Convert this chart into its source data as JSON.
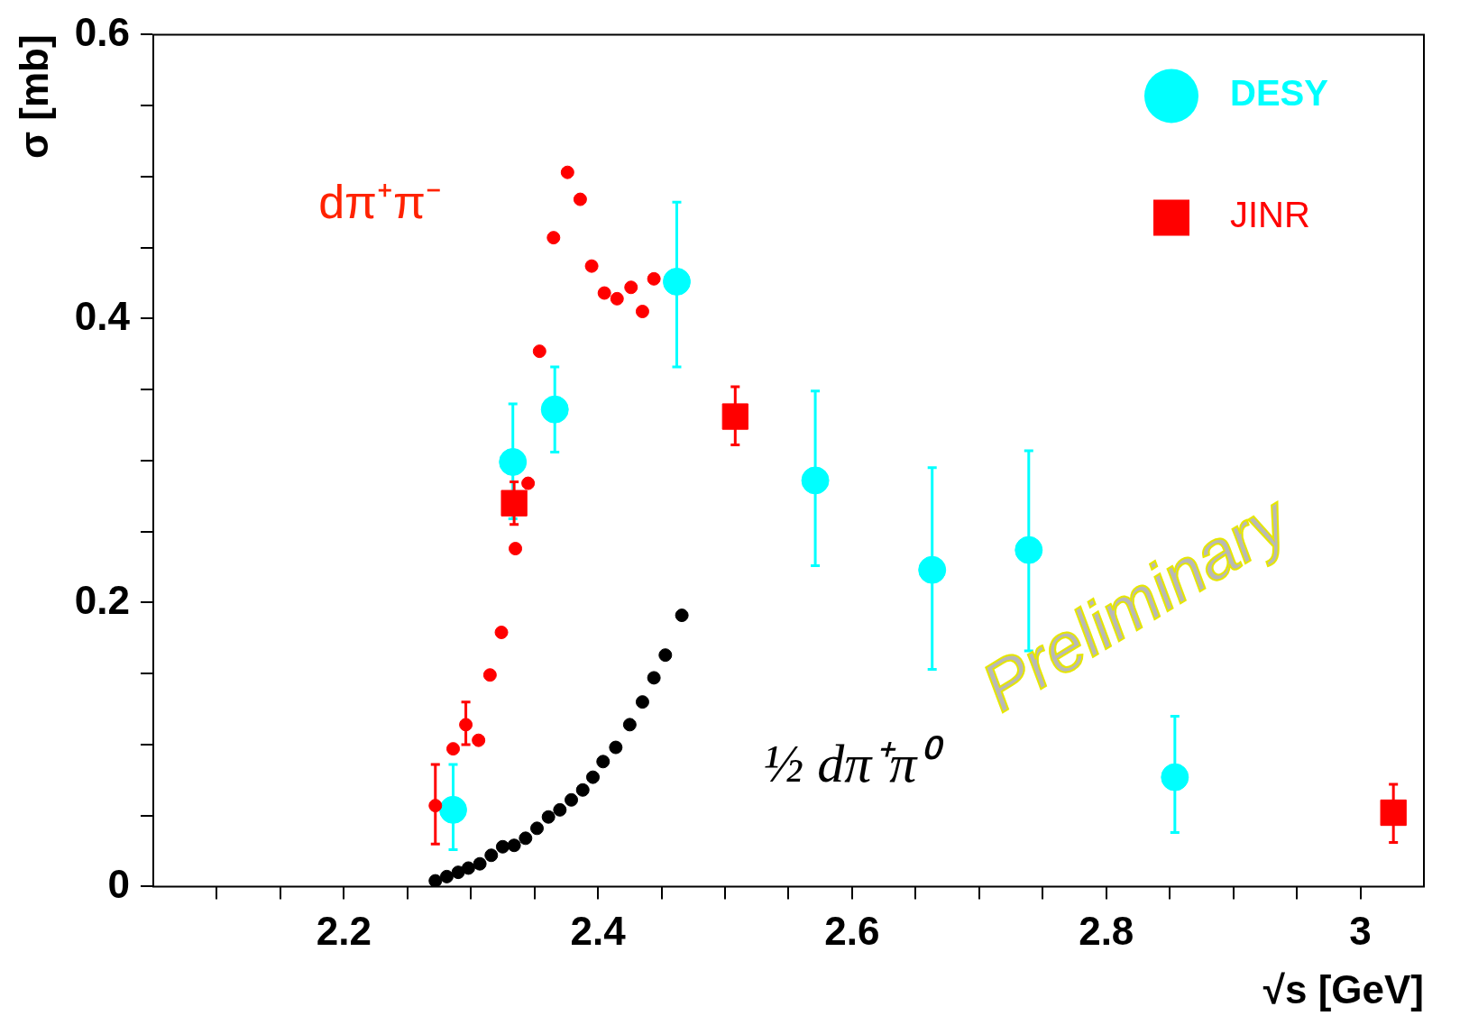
{
  "chart_data": {
    "type": "scatter",
    "xlabel": "√s [GeV]",
    "ylabel": "σ [mb]",
    "xlim": [
      2.05,
      3.05
    ],
    "ylim": [
      0,
      0.6
    ],
    "xticks": [
      {
        "value": 2.1,
        "label": null
      },
      {
        "value": 2.15,
        "label": null
      },
      2.2,
      {
        "value": 2.25,
        "label": null
      },
      {
        "value": 2.3,
        "label": null
      },
      {
        "value": 2.35,
        "label": null
      },
      2.4,
      {
        "value": 2.45,
        "label": null
      },
      {
        "value": 2.5,
        "label": null
      },
      {
        "value": 2.55,
        "label": null
      },
      2.6,
      {
        "value": 2.65,
        "label": null
      },
      {
        "value": 2.7,
        "label": null
      },
      {
        "value": 2.75,
        "label": null
      },
      2.8,
      {
        "value": 2.85,
        "label": null
      },
      {
        "value": 2.9,
        "label": null
      },
      {
        "value": 2.95,
        "label": null
      },
      3
    ],
    "yticks": [
      0,
      {
        "value": 0.05,
        "label": null
      },
      {
        "value": 0.1,
        "label": null
      },
      {
        "value": 0.15,
        "label": null
      },
      0.2,
      {
        "value": 0.25,
        "label": null
      },
      {
        "value": 0.3,
        "label": null
      },
      {
        "value": 0.35,
        "label": null
      },
      0.4,
      {
        "value": 0.45,
        "label": null
      },
      {
        "value": 0.5,
        "label": null
      },
      {
        "value": 0.55,
        "label": null
      },
      0.6
    ],
    "grid": false,
    "legend": "top right",
    "series": [
      {
        "color": "#ff0000",
        "marker": "circle",
        "x": [
          2.272,
          2.286,
          2.296,
          2.306,
          2.315,
          2.324,
          2.335,
          2.345,
          2.354,
          2.365,
          2.376,
          2.386,
          2.395,
          2.405,
          2.415,
          2.426,
          2.435,
          2.444
        ],
        "values": [
          0.057,
          0.097,
          0.114,
          0.103,
          0.149,
          0.179,
          0.238,
          0.284,
          0.377,
          0.457,
          0.503,
          0.484,
          0.437,
          0.418,
          0.414,
          0.422,
          0.405,
          0.428
        ],
        "errors": [
          [
            0.03,
            0.086
          ],
          null,
          [
            0.1,
            0.13
          ],
          null,
          null,
          null,
          null,
          null,
          null,
          null,
          null,
          null,
          null,
          null,
          null,
          null,
          null,
          null
        ]
      },
      {
        "color": "#000000",
        "marker": "circle",
        "x": [
          2.272,
          2.281,
          2.29,
          2.298,
          2.307,
          2.316,
          2.325,
          2.334,
          2.343,
          2.352,
          2.361,
          2.37,
          2.379,
          2.388,
          2.396,
          2.404,
          2.414,
          2.425,
          2.435,
          2.444,
          2.453,
          2.466
        ],
        "values": [
          0.004,
          0.007,
          0.01,
          0.013,
          0.016,
          0.022,
          0.028,
          0.029,
          0.034,
          0.041,
          0.049,
          0.054,
          0.061,
          0.068,
          0.077,
          0.088,
          0.098,
          0.114,
          0.13,
          0.147,
          0.163,
          0.191
        ]
      },
      {
        "name": "DESY",
        "color": "#00ffff",
        "marker": "circle",
        "x": [
          2.286,
          2.333,
          2.366,
          2.462,
          2.571,
          2.663,
          2.739,
          2.854
        ],
        "values": [
          0.054,
          0.299,
          0.336,
          0.426,
          0.286,
          0.223,
          0.237,
          0.077
        ],
        "errors": [
          [
            0.026,
            0.086
          ],
          [
            0.259,
            0.34
          ],
          [
            0.306,
            0.366
          ],
          [
            0.366,
            0.482
          ],
          [
            0.226,
            0.349
          ],
          [
            0.153,
            0.295
          ],
          [
            0.166,
            0.307
          ],
          [
            0.038,
            0.12
          ]
        ]
      },
      {
        "name": "JINR",
        "color": "#ff0000",
        "marker": "square",
        "x": [
          2.334,
          2.508,
          3.026
        ],
        "values": [
          0.27,
          0.331,
          0.052
        ],
        "errors": [
          [
            0.255,
            0.285
          ],
          [
            0.311,
            0.352
          ],
          [
            0.031,
            0.072
          ]
        ]
      }
    ],
    "annotations": [
      "dπ⁺π⁻",
      "½ dπ⁺π⁰",
      "Preliminary"
    ]
  }
}
